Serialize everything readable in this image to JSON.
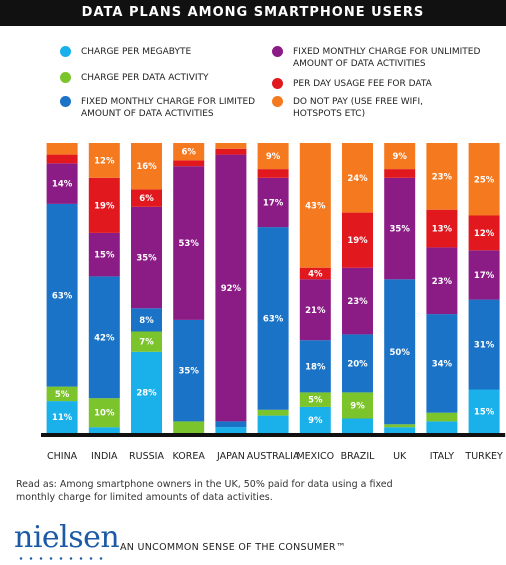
{
  "chart_data": {
    "type": "stacked_bar_100",
    "title": "DATA PLANS AMONG SMARTPHONE USERS",
    "categories": [
      "CHINA",
      "INDIA",
      "RUSSIA",
      "KOREA",
      "JAPAN",
      "AUSTRALIA",
      "MEXICO",
      "BRAZIL",
      "UK",
      "ITALY",
      "TURKEY"
    ],
    "ylim": [
      0,
      100
    ],
    "series": [
      {
        "name": "CHARGE PER MEGABYTE",
        "color": "#1ab0ea",
        "values": [
          11,
          2,
          28,
          0,
          2,
          6,
          9,
          5,
          2,
          4,
          15
        ],
        "value_labels": [
          "11%",
          null,
          "28%",
          null,
          null,
          null,
          "9%",
          null,
          null,
          null,
          "15%"
        ]
      },
      {
        "name": "CHARGE PER DATA ACTIVITY",
        "color": "#7cc42c",
        "values": [
          5,
          10,
          7,
          4,
          0,
          2,
          5,
          9,
          1,
          3,
          0
        ],
        "value_labels": [
          "5%",
          "10%",
          "7%",
          null,
          null,
          null,
          "5%",
          "9%",
          null,
          null,
          null
        ]
      },
      {
        "name": "FIXED MONTHLY CHARGE FOR LIMITED AMOUNT OF DATA ACTIVITIES",
        "color": "#1a73c6",
        "values": [
          63,
          42,
          8,
          35,
          2,
          63,
          18,
          20,
          50,
          34,
          31
        ],
        "value_labels": [
          "63%",
          "42%",
          "8%",
          "35%",
          null,
          "63%",
          "18%",
          "20%",
          "50%",
          "34%",
          "31%"
        ]
      },
      {
        "name": "FIXED MONTHLY CHARGE FOR UNLIMITED AMOUNT OF DATA ACTIVITIES",
        "color": "#8b1c86",
        "values": [
          14,
          15,
          35,
          53,
          92,
          17,
          21,
          23,
          35,
          23,
          17
        ],
        "value_labels": [
          "14%",
          "15%",
          "35%",
          "53%",
          "92%",
          "17%",
          "21%",
          "23%",
          "35%",
          "23%",
          "17%"
        ]
      },
      {
        "name": "PER DAY USAGE FEE FOR DATA",
        "color": "#e2181f",
        "values": [
          3,
          19,
          6,
          2,
          2,
          3,
          4,
          19,
          3,
          13,
          12
        ],
        "value_labels": [
          null,
          "19%",
          "6%",
          null,
          null,
          null,
          "4%",
          "19%",
          null,
          "13%",
          "12%"
        ]
      },
      {
        "name": "DO NOT PAY (USE FREE WIFI, HOTSPOTS ETC)",
        "color": "#f5791f",
        "values": [
          4,
          12,
          16,
          6,
          2,
          9,
          43,
          24,
          9,
          23,
          25
        ],
        "value_labels": [
          null,
          "12%",
          "16%",
          "6%",
          null,
          "9%",
          "43%",
          "24%",
          "9%",
          "23%",
          "25%"
        ]
      }
    ]
  },
  "note": "Read as: Among smartphone owners in the UK, 50% paid for data using a fixed monthly charge for limited amounts of data activities.",
  "logo": "nielsen",
  "tagline": "AN UNCOMMON SENSE OF THE CONSUMER™"
}
